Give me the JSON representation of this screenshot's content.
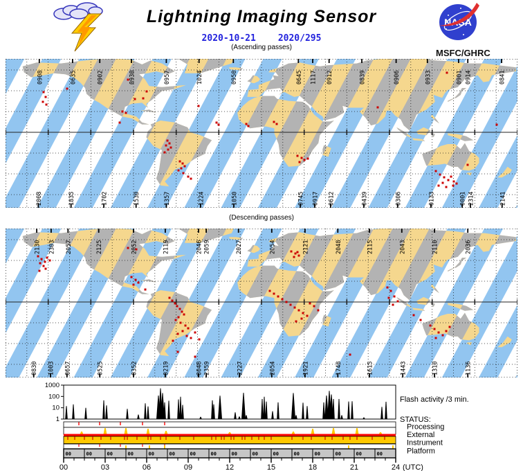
{
  "header": {
    "title": "Lightning Imaging Sensor",
    "date_iso": "2020-10-21",
    "date_doy": "2020/295",
    "org": "MSFC/GHRC",
    "nasa_wordmark": "NASA"
  },
  "colors": {
    "swath_blue": "#92C5F0",
    "land_day": "#F5D78E",
    "land_night": "#B3B3B3",
    "flash_red": "#CC0000",
    "status_red": "#FF0000",
    "status_yellow": "#FFC800",
    "platform_gray": "#C6C6C6",
    "date_blue": "#2222DD",
    "nasa_blue": "#3040CE",
    "nasa_red": "#E03030"
  },
  "maps": [
    {
      "caption": "(Ascending passes)",
      "top_labels": [
        [
          "0908",
          0.066
        ],
        [
          "0635",
          0.131
        ],
        [
          "0902",
          0.184
        ],
        [
          "0930",
          0.246
        ],
        [
          "0957",
          0.314
        ],
        [
          "1024",
          0.378
        ],
        [
          "0950",
          0.445
        ],
        [
          "0645",
          0.572
        ],
        [
          "1117",
          0.6
        ],
        [
          "0912",
          0.632
        ],
        [
          "0839",
          0.696
        ],
        [
          "0906",
          0.763
        ],
        [
          "0933",
          0.824
        ],
        [
          "0901",
          0.885
        ],
        [
          "0914",
          0.903
        ],
        [
          "0841",
          0.969
        ]
      ],
      "bottom_labels": [
        [
          "2008",
          0.064
        ],
        [
          "1835",
          0.128
        ],
        [
          "1702",
          0.192
        ],
        [
          "1530",
          0.255
        ],
        [
          "1357",
          0.314
        ],
        [
          "1224",
          0.381
        ],
        [
          "1050",
          0.446
        ],
        [
          "0745",
          0.576
        ],
        [
          "0917",
          0.604
        ],
        [
          "0612",
          0.635
        ],
        [
          "0439",
          0.7
        ],
        [
          "0306",
          0.766
        ],
        [
          "0133",
          0.831
        ],
        [
          "0001",
          0.892
        ],
        [
          "2314",
          0.908
        ],
        [
          "2141",
          0.97
        ]
      ],
      "flashes": [
        [
          55,
          48
        ],
        [
          58,
          55
        ],
        [
          54,
          62
        ],
        [
          59,
          66
        ],
        [
          89,
          43
        ],
        [
          177,
          30
        ],
        [
          204,
          47
        ],
        [
          187,
          58
        ],
        [
          199,
          57
        ],
        [
          169,
          76
        ],
        [
          174,
          78
        ],
        [
          165,
          92
        ],
        [
          234,
          118
        ],
        [
          237,
          122
        ],
        [
          232,
          125
        ],
        [
          239,
          128
        ],
        [
          235,
          131
        ],
        [
          230,
          135
        ],
        [
          279,
          68
        ],
        [
          305,
          92
        ],
        [
          308,
          95
        ],
        [
          348,
          94
        ],
        [
          351,
          97
        ],
        [
          252,
          148
        ],
        [
          256,
          151
        ],
        [
          259,
          155
        ],
        [
          254,
          158
        ],
        [
          250,
          161
        ],
        [
          257,
          165
        ],
        [
          264,
          170
        ],
        [
          268,
          173
        ],
        [
          422,
          140
        ],
        [
          428,
          143
        ],
        [
          432,
          146
        ],
        [
          425,
          149
        ],
        [
          437,
          144
        ],
        [
          388,
          91
        ],
        [
          392,
          94
        ],
        [
          638,
          20
        ],
        [
          538,
          70
        ],
        [
          622,
          162
        ],
        [
          628,
          167
        ],
        [
          634,
          171
        ],
        [
          640,
          175
        ],
        [
          632,
          179
        ],
        [
          626,
          183
        ],
        [
          644,
          170
        ],
        [
          648,
          177
        ],
        [
          637,
          185
        ],
        [
          647,
          183
        ],
        [
          652,
          180
        ],
        [
          668,
          153
        ],
        [
          710,
          95
        ]
      ]
    },
    {
      "caption": "(Descending passes)",
      "top_labels": [
        [
          "2130",
          0.061
        ],
        [
          "2303",
          0.089
        ],
        [
          "2057",
          0.122
        ],
        [
          "2125",
          0.182
        ],
        [
          "2052",
          0.25
        ],
        [
          "2119",
          0.312
        ],
        [
          "2046",
          0.377
        ],
        [
          "2059",
          0.392
        ],
        [
          "2027",
          0.455
        ],
        [
          "2054",
          0.52
        ],
        [
          "2121",
          0.585
        ],
        [
          "2048",
          0.649
        ],
        [
          "2115",
          0.711
        ],
        [
          "2043",
          0.774
        ],
        [
          "2110",
          0.838
        ],
        [
          "2036",
          0.903
        ]
      ],
      "bottom_labels": [
        [
          "0830",
          0.055
        ],
        [
          "1003",
          0.088
        ],
        [
          "0657",
          0.12
        ],
        [
          "0525",
          0.184
        ],
        [
          "0352",
          0.25
        ],
        [
          "0219",
          0.312
        ],
        [
          "0046",
          0.377
        ],
        [
          "2359",
          0.392
        ],
        [
          "2227",
          0.457
        ],
        [
          "2054",
          0.52
        ],
        [
          "1921",
          0.585
        ],
        [
          "1748",
          0.649
        ],
        [
          "1615",
          0.711
        ],
        [
          "1443",
          0.776
        ],
        [
          "1310",
          0.838
        ],
        [
          "1136",
          0.903
        ]
      ],
      "flashes": [
        [
          47,
          40
        ],
        [
          52,
          44
        ],
        [
          57,
          48
        ],
        [
          50,
          50
        ],
        [
          55,
          54
        ],
        [
          60,
          42
        ],
        [
          64,
          46
        ],
        [
          58,
          58
        ],
        [
          49,
          61
        ],
        [
          177,
          28
        ],
        [
          189,
          30
        ],
        [
          182,
          70
        ],
        [
          188,
          74
        ],
        [
          192,
          78
        ],
        [
          185,
          81
        ],
        [
          202,
          88
        ],
        [
          237,
          100
        ],
        [
          241,
          104
        ],
        [
          245,
          108
        ],
        [
          248,
          112
        ],
        [
          252,
          116
        ],
        [
          255,
          120
        ],
        [
          258,
          124
        ],
        [
          250,
          128
        ],
        [
          246,
          132
        ],
        [
          253,
          136
        ],
        [
          260,
          140
        ],
        [
          264,
          144
        ],
        [
          256,
          148
        ],
        [
          249,
          152
        ],
        [
          262,
          155
        ],
        [
          268,
          158
        ],
        [
          274,
          150
        ],
        [
          280,
          160
        ],
        [
          242,
          162
        ],
        [
          249,
          178
        ],
        [
          274,
          185
        ],
        [
          382,
          90
        ],
        [
          388,
          94
        ],
        [
          394,
          98
        ],
        [
          400,
          102
        ],
        [
          406,
          106
        ],
        [
          412,
          110
        ],
        [
          418,
          114
        ],
        [
          424,
          118
        ],
        [
          430,
          122
        ],
        [
          436,
          126
        ],
        [
          428,
          130
        ],
        [
          420,
          134
        ],
        [
          440,
          108
        ],
        [
          446,
          112
        ],
        [
          452,
          118
        ],
        [
          413,
          33
        ],
        [
          419,
          36
        ],
        [
          424,
          39
        ],
        [
          417,
          41
        ],
        [
          422,
          34
        ],
        [
          552,
          85
        ],
        [
          557,
          90
        ],
        [
          562,
          98
        ],
        [
          567,
          105
        ],
        [
          560,
          110
        ],
        [
          554,
          100
        ],
        [
          614,
          140
        ],
        [
          620,
          145
        ],
        [
          626,
          150
        ],
        [
          632,
          154
        ],
        [
          622,
          158
        ],
        [
          637,
          148
        ],
        [
          642,
          142
        ],
        [
          498,
          182
        ],
        [
          590,
          125
        ],
        [
          600,
          132
        ]
      ]
    }
  ],
  "activity": {
    "label": "Flash activity /3 min.",
    "yticks": [
      "1000",
      "100",
      "10",
      "1"
    ]
  },
  "status": {
    "heading": "STATUS:",
    "rows": [
      {
        "label": "Processing"
      },
      {
        "label": "External"
      },
      {
        "label": "Instrument"
      },
      {
        "label": "Platform"
      }
    ],
    "processing_red_ticks": [
      1.1,
      2.6,
      4.1,
      5.7,
      7.3
    ],
    "external_yellow_bumps": [
      [
        1.3,
        4
      ],
      [
        3.0,
        9
      ],
      [
        4.5,
        9
      ],
      [
        6.1,
        8
      ],
      [
        7.4,
        5
      ],
      [
        12.0,
        3
      ],
      [
        16.6,
        4
      ],
      [
        18.0,
        8
      ],
      [
        19.5,
        9
      ],
      [
        21.2,
        9
      ],
      [
        22.9,
        3
      ]
    ],
    "instrument_red_ticks": [
      0.3,
      0.8,
      1.5,
      2.1,
      2.7,
      3.4,
      4.4,
      4.6,
      5.3,
      6.1,
      6.3,
      7.0,
      7.4,
      8.4,
      9.4,
      10.7,
      11.0,
      11.4,
      11.6,
      12.1,
      12.3,
      12.9,
      13.1,
      13.6,
      14.1,
      14.5,
      15.0,
      16.5,
      17.3,
      17.9,
      18.9,
      19.4,
      20.2,
      20.7,
      21.2,
      22.3,
      23.2
    ],
    "platform_red_ticks": [
      1.1,
      2.6,
      4.1,
      5.7,
      7.3
    ],
    "platform_yellow_ticks": [
      4.5,
      6.2,
      7.3,
      20.6,
      23.8
    ],
    "platform_segments": 16,
    "platform_segment_label": "00"
  },
  "axis": {
    "labels": [
      "00",
      "03",
      "06",
      "09",
      "12",
      "15",
      "18",
      "21",
      "24"
    ],
    "suffix": "(UTC)"
  },
  "chart_data": {
    "type": "bar",
    "title": "Flash activity /3 min.",
    "xlabel": "(UTC)",
    "ylabel": "",
    "xlim": [
      0,
      24
    ],
    "ylim_log": [
      1,
      1000
    ],
    "xticks": [
      "00",
      "03",
      "06",
      "09",
      "12",
      "15",
      "18",
      "21",
      "24"
    ],
    "yticks": [
      1,
      10,
      100,
      1000
    ],
    "points": [
      [
        0.2,
        14
      ],
      [
        0.7,
        20
      ],
      [
        1.6,
        10
      ],
      [
        2.9,
        45
      ],
      [
        3.1,
        16
      ],
      [
        4.6,
        8
      ],
      [
        5.4,
        2.5
      ],
      [
        5.9,
        25
      ],
      [
        6.1,
        13
      ],
      [
        6.85,
        120
      ],
      [
        7.0,
        520
      ],
      [
        7.15,
        200
      ],
      [
        7.3,
        30
      ],
      [
        7.6,
        42
      ],
      [
        8.3,
        55
      ],
      [
        8.45,
        95
      ],
      [
        8.6,
        18
      ],
      [
        9.9,
        1.6
      ],
      [
        10.75,
        45
      ],
      [
        10.85,
        20
      ],
      [
        11.3,
        115
      ],
      [
        12.4,
        4
      ],
      [
        12.7,
        1.7
      ],
      [
        13.0,
        210
      ],
      [
        13.2,
        2.2
      ],
      [
        14.35,
        60
      ],
      [
        14.5,
        95
      ],
      [
        14.65,
        35
      ],
      [
        15.1,
        5
      ],
      [
        15.5,
        30
      ],
      [
        16.6,
        200
      ],
      [
        16.8,
        2.2
      ],
      [
        17.3,
        28
      ],
      [
        17.6,
        14
      ],
      [
        18.8,
        30
      ],
      [
        19.0,
        120
      ],
      [
        19.2,
        310
      ],
      [
        19.35,
        150
      ],
      [
        19.5,
        60
      ],
      [
        19.9,
        60
      ],
      [
        20.1,
        2.2
      ],
      [
        20.6,
        36
      ],
      [
        20.85,
        38
      ],
      [
        21.7,
        1.4
      ],
      [
        23.0,
        12
      ],
      [
        23.3,
        34
      ]
    ]
  }
}
